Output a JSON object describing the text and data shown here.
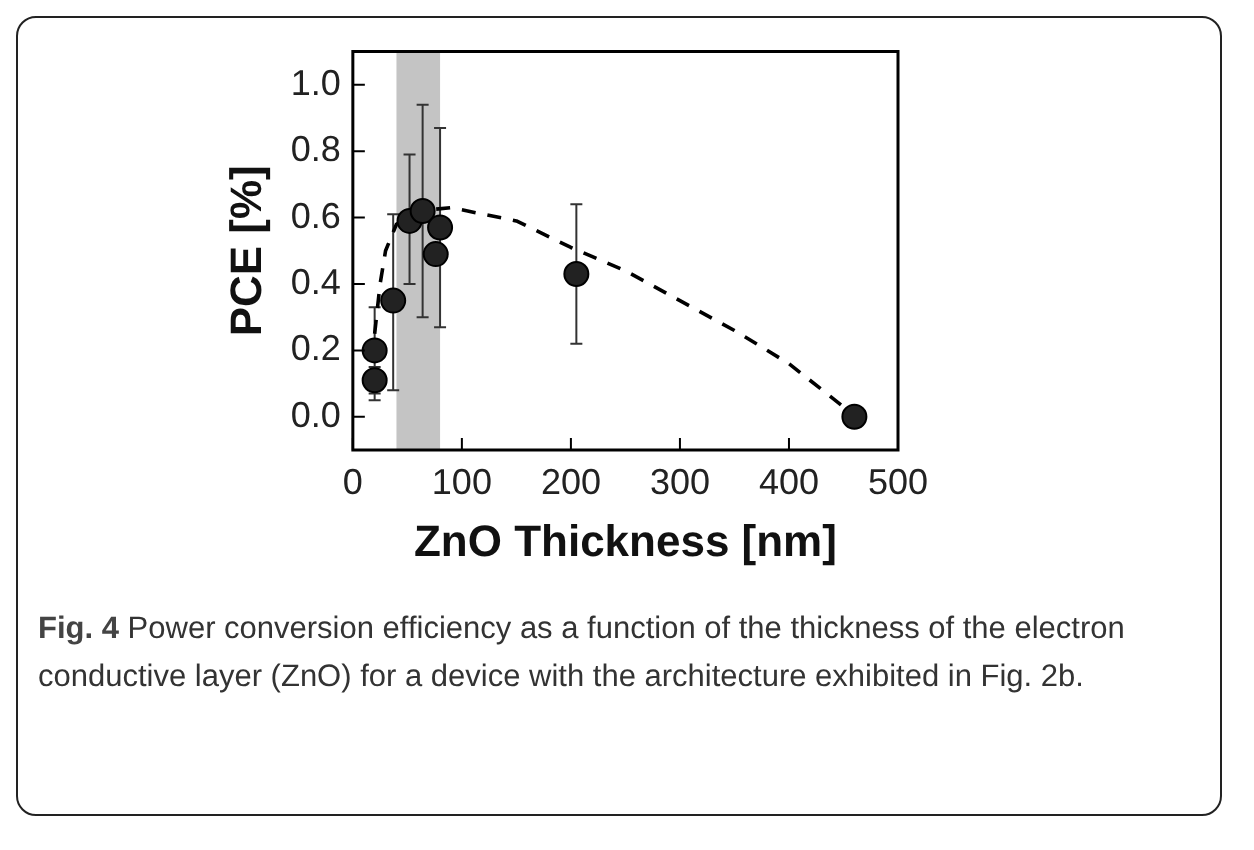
{
  "chart_data": {
    "type": "scatter",
    "xlabel": "ZnO Thickness [nm]",
    "ylabel": "PCE [%]",
    "xlim": [
      0,
      500
    ],
    "xticks": [
      0,
      100,
      200,
      300,
      400,
      500
    ],
    "ylim": [
      -0.1,
      1.1
    ],
    "yticks": [
      {
        "value": 0,
        "label": "0.0"
      },
      0.2,
      0.4,
      0.6,
      0.8,
      {
        "value": 1,
        "label": "1.0"
      }
    ],
    "grid": false,
    "legend": false,
    "marker": "circle",
    "series": [
      {
        "type": "scatter",
        "color": "#222222",
        "x": [
          20,
          20,
          37,
          52,
          64,
          76,
          80,
          205,
          460
        ],
        "values": [
          0.11,
          0.2,
          0.35,
          0.59,
          0.62,
          0.49,
          0.57,
          0.43,
          0.0
        ],
        "errors": [
          [
            0.05,
            0.15
          ],
          [
            0.07,
            0.33
          ],
          [
            0.08,
            0.61
          ],
          [
            0.4,
            0.79
          ],
          [
            0.3,
            0.94
          ],
          null,
          [
            0.27,
            0.87
          ],
          [
            0.22,
            0.64
          ],
          null
        ]
      },
      {
        "type": "line",
        "color": "#000000",
        "line_style": "dashed",
        "marker": "none",
        "x": [
          20,
          25,
          30,
          40,
          60,
          90,
          150,
          200,
          250,
          300,
          350,
          400,
          450,
          460
        ],
        "values": [
          0.25,
          0.4,
          0.5,
          0.58,
          0.62,
          0.63,
          0.59,
          0.51,
          0.44,
          0.35,
          0.26,
          0.16,
          0.03,
          0.0
        ]
      }
    ],
    "bands": [
      {
        "axis": "x",
        "from": 40,
        "to": 80,
        "color": "#c4c4c4"
      }
    ],
    "annotations": [
      "Fig. 4 Power conversion efficiency as a function of the thickness of the electron conductive layer (ZnO) for a device with the architecture exhibited in Fig. 2b."
    ]
  }
}
